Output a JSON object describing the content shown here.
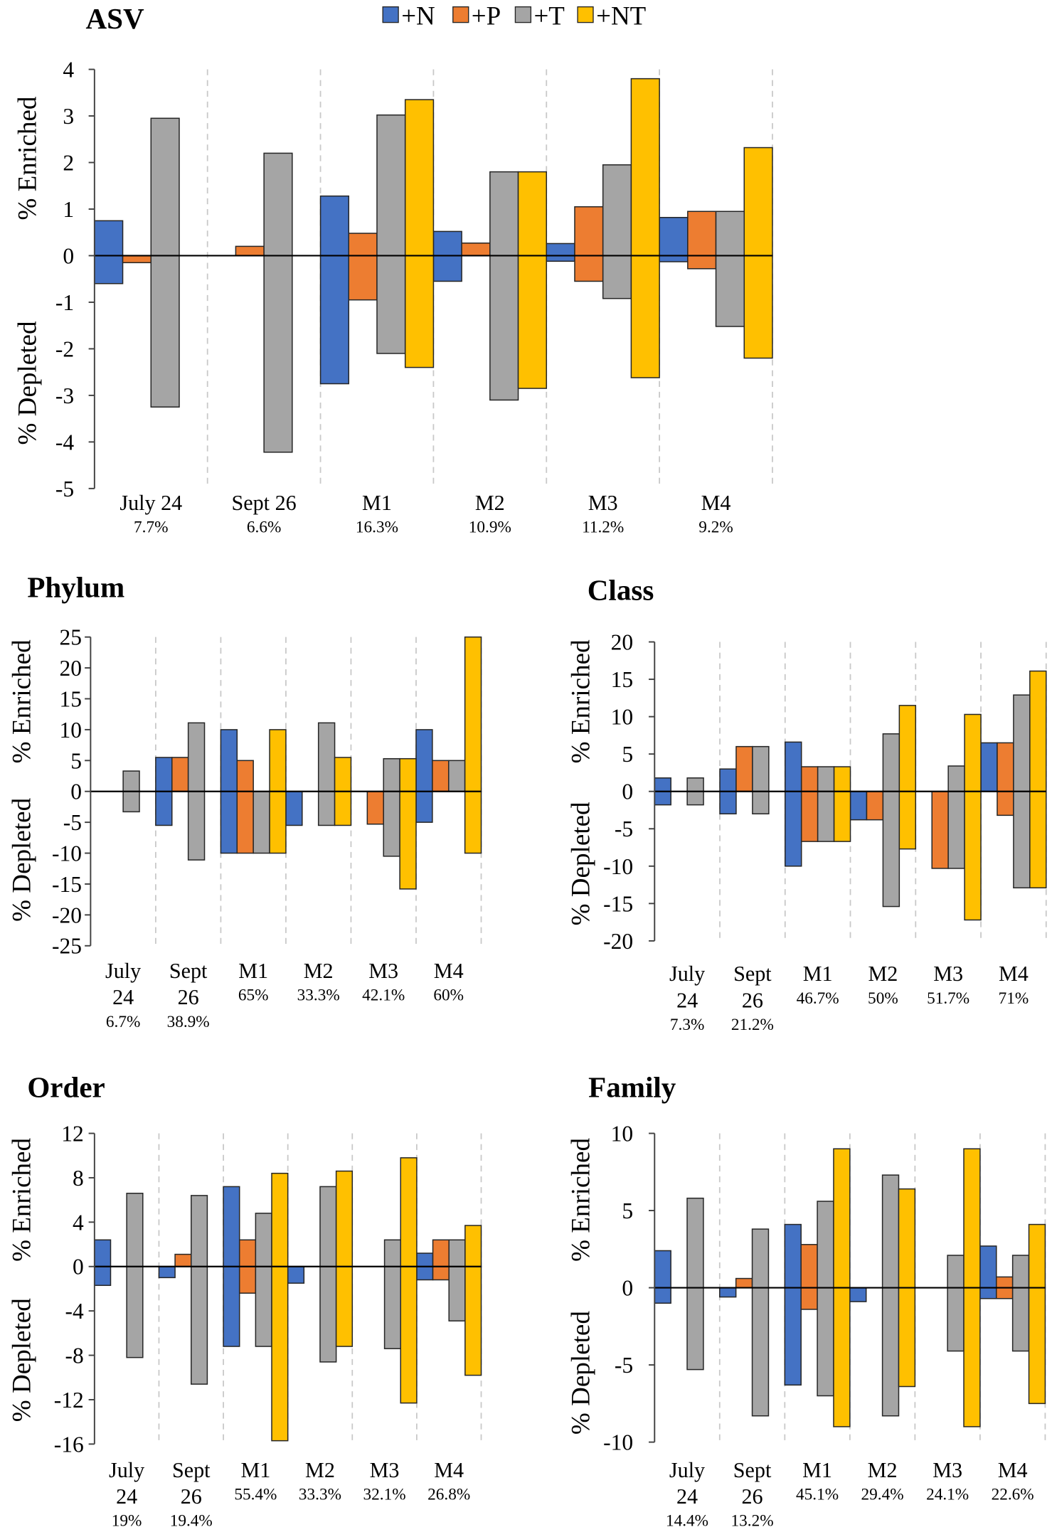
{
  "legend": [
    {
      "label": "+N",
      "color": "#4472C4"
    },
    {
      "label": "+P",
      "color": "#ED7D31"
    },
    {
      "label": "+T",
      "color": "#A5A5A5"
    },
    {
      "label": "+NT",
      "color": "#FFC000"
    }
  ],
  "chart_data": [
    {
      "type": "bar",
      "title": "ASV",
      "ylabel_enriched": "% Enriched",
      "ylabel_depleted": "% Depleted",
      "ylim": [
        -5,
        4
      ],
      "yticks": [
        4,
        3,
        2,
        1,
        0,
        -1,
        -2,
        -3,
        -4,
        -5
      ],
      "categories": [
        {
          "name_lines": [
            "July 24"
          ],
          "note": "7.7%"
        },
        {
          "name_lines": [
            "Sept 26"
          ],
          "note": "6.6%"
        },
        {
          "name_lines": [
            "M1"
          ],
          "note": "16.3%"
        },
        {
          "name_lines": [
            "M2"
          ],
          "note": "10.9%"
        },
        {
          "name_lines": [
            "M3"
          ],
          "note": "11.2%"
        },
        {
          "name_lines": [
            "M4"
          ],
          "note": "9.2%"
        }
      ],
      "series": [
        {
          "name": "+N",
          "enriched": [
            0.75,
            0,
            1.28,
            0.52,
            0.26,
            0.82
          ],
          "depleted": [
            -0.6,
            0,
            -2.75,
            -0.55,
            -0.12,
            -0.13
          ]
        },
        {
          "name": "+P",
          "enriched": [
            0,
            0.2,
            0.48,
            0.27,
            1.05,
            0.95
          ],
          "depleted": [
            -0.15,
            0,
            -0.95,
            0,
            -0.55,
            -0.28
          ]
        },
        {
          "name": "+T",
          "enriched": [
            2.95,
            2.2,
            3.02,
            1.8,
            1.95,
            0.95
          ],
          "depleted": [
            -3.25,
            -4.22,
            -2.1,
            -3.1,
            -0.92,
            -1.52
          ]
        },
        {
          "name": "+NT",
          "enriched": [
            0,
            0,
            3.35,
            1.8,
            3.8,
            2.32
          ],
          "depleted": [
            0,
            0,
            -2.4,
            -2.85,
            -2.62,
            -2.2
          ]
        }
      ]
    },
    {
      "type": "bar",
      "title": "Phylum",
      "ylabel_enriched": "% Enriched",
      "ylabel_depleted": "% Depleted",
      "ylim": [
        -25,
        25
      ],
      "yticks": [
        25,
        20,
        15,
        10,
        5,
        0,
        -5,
        -10,
        -15,
        -20,
        -25
      ],
      "categories": [
        {
          "name_lines": [
            "July",
            "24"
          ],
          "note": "6.7%"
        },
        {
          "name_lines": [
            "Sept",
            "26"
          ],
          "note": "38.9%"
        },
        {
          "name_lines": [
            "M1"
          ],
          "note": "65%"
        },
        {
          "name_lines": [
            "M2"
          ],
          "note": "33.3%"
        },
        {
          "name_lines": [
            "M3"
          ],
          "note": "42.1%"
        },
        {
          "name_lines": [
            "M4"
          ],
          "note": "60%"
        }
      ],
      "series": [
        {
          "name": "+N",
          "enriched": [
            0,
            5.5,
            10,
            0,
            0,
            10
          ],
          "depleted": [
            0,
            -5.5,
            -10,
            -5.5,
            0,
            -5
          ]
        },
        {
          "name": "+P",
          "enriched": [
            0,
            5.5,
            5,
            0,
            0,
            5
          ],
          "depleted": [
            0,
            0,
            -10,
            0,
            -5.3,
            0
          ]
        },
        {
          "name": "+T",
          "enriched": [
            3.3,
            11.1,
            0,
            11.1,
            5.3,
            5
          ],
          "depleted": [
            -3.3,
            -11.1,
            -10,
            -5.5,
            -10.5,
            0
          ]
        },
        {
          "name": "+NT",
          "enriched": [
            0,
            0,
            10,
            5.5,
            5.3,
            25
          ],
          "depleted": [
            0,
            0,
            -10,
            -5.5,
            -15.8,
            -10
          ]
        }
      ]
    },
    {
      "type": "bar",
      "title": "Class",
      "ylabel_enriched": "% Enriched",
      "ylabel_depleted": "% Depleted",
      "ylim": [
        -20,
        20
      ],
      "yticks": [
        20,
        15,
        10,
        5,
        0,
        -5,
        -10,
        -15,
        -20
      ],
      "categories": [
        {
          "name_lines": [
            "July",
            "24"
          ],
          "note": "7.3%"
        },
        {
          "name_lines": [
            "Sept",
            "26"
          ],
          "note": "21.2%"
        },
        {
          "name_lines": [
            "M1"
          ],
          "note": "46.7%"
        },
        {
          "name_lines": [
            "M2"
          ],
          "note": "50%"
        },
        {
          "name_lines": [
            "M3"
          ],
          "note": "51.7%"
        },
        {
          "name_lines": [
            "M4"
          ],
          "note": "71%"
        }
      ],
      "series": [
        {
          "name": "+N",
          "enriched": [
            1.8,
            3,
            6.6,
            0,
            0,
            6.5
          ],
          "depleted": [
            -1.8,
            -3,
            -10,
            -3.8,
            0,
            0
          ]
        },
        {
          "name": "+P",
          "enriched": [
            0,
            6,
            3.3,
            0,
            0,
            6.5
          ],
          "depleted": [
            0,
            0,
            -6.7,
            -3.8,
            -10.3,
            -3.2
          ]
        },
        {
          "name": "+T",
          "enriched": [
            1.8,
            6,
            3.3,
            7.7,
            3.4,
            12.9
          ],
          "depleted": [
            -1.8,
            -3,
            -6.7,
            -15.4,
            -10.3,
            -12.9
          ]
        },
        {
          "name": "+NT",
          "enriched": [
            0,
            0,
            3.3,
            11.5,
            10.3,
            16.1
          ],
          "depleted": [
            0,
            0,
            -6.7,
            -7.7,
            -17.2,
            -12.9
          ]
        }
      ]
    },
    {
      "type": "bar",
      "title": "Order",
      "ylabel_enriched": "% Enriched",
      "ylabel_depleted": "% Depleted",
      "ylim": [
        -16,
        12
      ],
      "yticks": [
        12,
        8,
        4,
        0,
        -4,
        -8,
        -12,
        -16
      ],
      "categories": [
        {
          "name_lines": [
            "July",
            "24"
          ],
          "note": "19%"
        },
        {
          "name_lines": [
            "Sept",
            "26"
          ],
          "note": "19.4%"
        },
        {
          "name_lines": [
            "M1"
          ],
          "note": "55.4%"
        },
        {
          "name_lines": [
            "M2"
          ],
          "note": "33.3%"
        },
        {
          "name_lines": [
            "M3"
          ],
          "note": "32.1%"
        },
        {
          "name_lines": [
            "M4"
          ],
          "note": "26.8%"
        }
      ],
      "series": [
        {
          "name": "+N",
          "enriched": [
            2.4,
            0,
            7.2,
            0,
            0,
            1.2
          ],
          "depleted": [
            -1.7,
            -1,
            -7.2,
            -1.5,
            0,
            -1.2
          ]
        },
        {
          "name": "+P",
          "enriched": [
            0,
            1.1,
            2.4,
            0,
            0,
            2.4
          ],
          "depleted": [
            0,
            0,
            -2.4,
            0,
            0,
            -1.2
          ]
        },
        {
          "name": "+T",
          "enriched": [
            6.6,
            6.4,
            4.8,
            7.2,
            2.4,
            2.4
          ],
          "depleted": [
            -8.2,
            -10.6,
            -7.2,
            -8.6,
            -7.4,
            -4.9
          ]
        },
        {
          "name": "+NT",
          "enriched": [
            0,
            0,
            8.4,
            8.6,
            9.8,
            3.7
          ],
          "depleted": [
            0,
            0,
            -15.7,
            -7.2,
            -12.3,
            -9.8
          ]
        }
      ]
    },
    {
      "type": "bar",
      "title": "Family",
      "ylabel_enriched": "% Enriched",
      "ylabel_depleted": "% Depleted",
      "ylim": [
        -10,
        10
      ],
      "yticks": [
        10,
        5,
        0,
        -5,
        -10
      ],
      "categories": [
        {
          "name_lines": [
            "July",
            "24"
          ],
          "note": "14.4%"
        },
        {
          "name_lines": [
            "Sept",
            "26"
          ],
          "note": "13.2%"
        },
        {
          "name_lines": [
            "M1"
          ],
          "note": "45.1%"
        },
        {
          "name_lines": [
            "M2"
          ],
          "note": "29.4%"
        },
        {
          "name_lines": [
            "M3"
          ],
          "note": "24.1%"
        },
        {
          "name_lines": [
            "M4"
          ],
          "note": "22.6%"
        }
      ],
      "series": [
        {
          "name": "+N",
          "enriched": [
            2.4,
            0,
            4.1,
            0,
            0,
            2.7
          ],
          "depleted": [
            -1,
            -0.6,
            -6.3,
            -0.9,
            0,
            -0.7
          ]
        },
        {
          "name": "+P",
          "enriched": [
            0,
            0.6,
            2.8,
            0,
            0,
            0.7
          ],
          "depleted": [
            0,
            0,
            -1.4,
            0,
            0,
            -0.7
          ]
        },
        {
          "name": "+T",
          "enriched": [
            5.8,
            3.8,
            5.6,
            7.3,
            2.1,
            2.1
          ],
          "depleted": [
            -5.3,
            -8.3,
            -7,
            -8.3,
            -4.1,
            -4.1
          ]
        },
        {
          "name": "+NT",
          "enriched": [
            0,
            0,
            9,
            6.4,
            9,
            4.1
          ],
          "depleted": [
            0,
            0,
            -9,
            -6.4,
            -9,
            -7.5
          ]
        }
      ]
    }
  ]
}
